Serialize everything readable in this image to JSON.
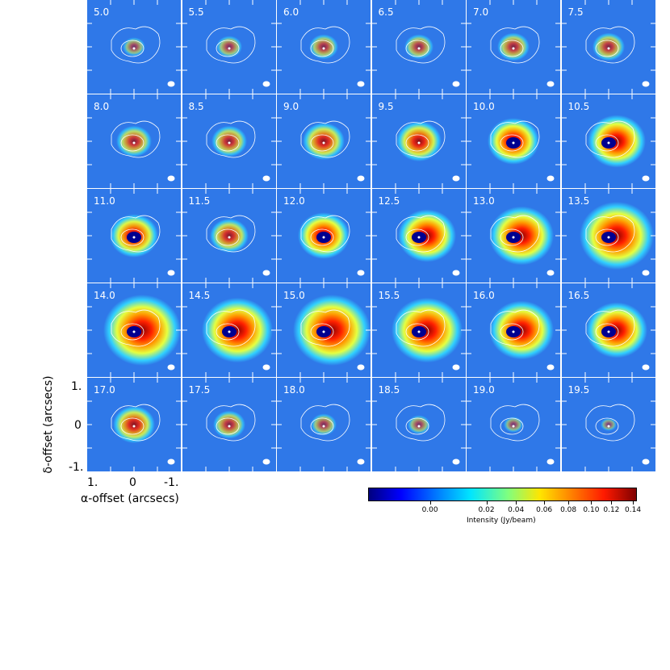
{
  "chart_data": {
    "type": "heatmap",
    "panel_labels": [
      "5.0",
      "5.5",
      "6.0",
      "6.5",
      "7.0",
      "7.5",
      "8.0",
      "8.5",
      "9.0",
      "9.5",
      "10.0",
      "10.5",
      "11.0",
      "11.5",
      "12.0",
      "12.5",
      "13.0",
      "13.5",
      "14.0",
      "14.5",
      "15.0",
      "15.5",
      "16.0",
      "16.5",
      "17.0",
      "17.5",
      "18.0",
      "18.5",
      "19.0",
      "19.5"
    ],
    "grid_columns": 6,
    "grid_rows": 5,
    "ylabel": "δ-offset (arcsecs)",
    "xlabel": "α-offset (arcsecs)",
    "y_ticks": [
      "1.",
      "0",
      "-1."
    ],
    "x_ticks": [
      "1.",
      "0",
      "-1."
    ],
    "xlim": [
      1,
      -1
    ],
    "ylim": [
      -1,
      1
    ],
    "colorbar": {
      "label": "Intensity (Jy/beam)",
      "ticks": [
        "0.00",
        "0.02",
        "0.04",
        "0.06",
        "0.08",
        "0.10",
        "0.12",
        "0.14"
      ],
      "colormap": "jet"
    },
    "emission_level": [
      0.15,
      0.2,
      0.25,
      0.25,
      0.3,
      0.3,
      0.35,
      0.35,
      0.45,
      0.5,
      0.6,
      0.7,
      0.55,
      0.4,
      0.6,
      0.7,
      0.8,
      0.95,
      1.0,
      0.9,
      1.0,
      0.9,
      0.8,
      0.75,
      0.45,
      0.3,
      0.2,
      0.15,
      0.1,
      0.05
    ]
  }
}
